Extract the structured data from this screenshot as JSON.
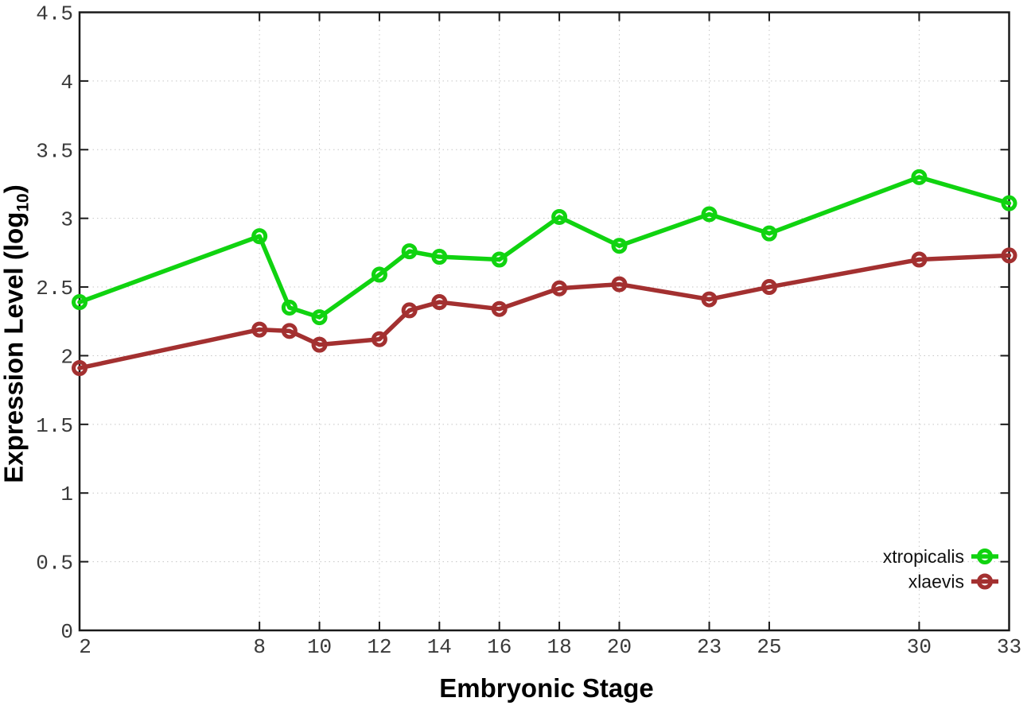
{
  "figure": {
    "xlabel": "Embryonic Stage",
    "ylabel_main": "Expression Level (log",
    "ylabel_sub": "10",
    "ylabel_close": ")"
  },
  "chart_data": {
    "type": "line",
    "title": "",
    "xlabel": "Embryonic Stage",
    "ylabel": "Expression Level (log10)",
    "x": [
      2,
      8,
      9,
      10,
      12,
      13,
      14,
      16,
      18,
      20,
      23,
      25,
      30,
      33
    ],
    "series": [
      {
        "name": "xtropicalis",
        "color": "#10d310",
        "marker": "open-circle",
        "values": [
          2.39,
          2.87,
          2.35,
          2.28,
          2.59,
          2.76,
          2.72,
          2.7,
          3.01,
          2.8,
          3.03,
          2.89,
          3.3,
          3.11
        ]
      },
      {
        "name": "xlaevis",
        "color": "#a33030",
        "marker": "open-circle",
        "values": [
          1.91,
          2.19,
          2.18,
          2.08,
          2.12,
          2.33,
          2.39,
          2.34,
          2.49,
          2.52,
          2.41,
          2.5,
          2.7,
          2.73
        ]
      }
    ],
    "xlim": [
      2,
      33
    ],
    "ylim": [
      0,
      4.5
    ],
    "xticks": [
      2,
      8,
      10,
      12,
      14,
      16,
      18,
      20,
      23,
      25,
      30,
      33
    ],
    "yticks": [
      "0",
      "0.5",
      "1",
      "1.5",
      "2",
      "2.5",
      "3",
      "3.5",
      "4",
      "4.5"
    ],
    "grid": true,
    "grid_style": "dotted",
    "legend_position": "inside-bottom-right",
    "legend": [
      "xtropicalis",
      "xlaevis"
    ]
  },
  "style": {
    "background": "#ffffff",
    "axis_color": "#1a1a1a",
    "grid_color": "#c6c6c6",
    "tick_label_color": "#3a3a3a",
    "series_green": "#10d310",
    "series_brown": "#a33030"
  }
}
